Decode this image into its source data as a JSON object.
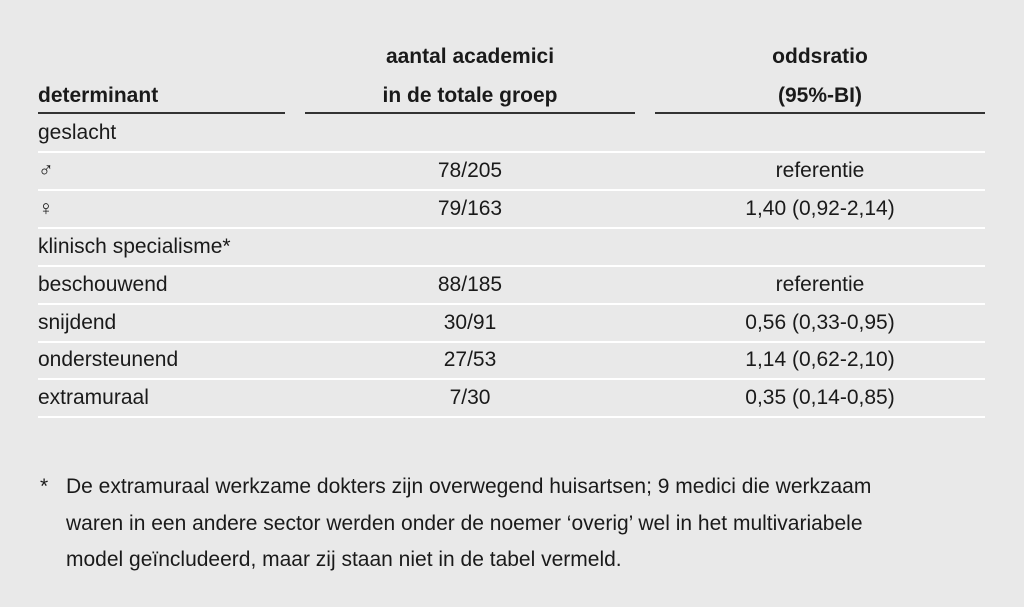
{
  "table": {
    "header": [
      [
        "determinant"
      ],
      [
        "aantal academici",
        "in de totale groep"
      ],
      [
        "oddsratio",
        "(95%-BI)"
      ]
    ],
    "rows": [
      {
        "label": "geslacht"
      },
      {
        "label": "♂",
        "count": "78/205",
        "oddsratio": "referentie"
      },
      {
        "label": "♀",
        "count": "79/163",
        "oddsratio": "1,40 (0,92-2,14)"
      },
      {
        "label": "klinisch specialisme*"
      },
      {
        "label": "beschouwend",
        "count": "88/185",
        "oddsratio": "referentie"
      },
      {
        "label": "snijdend",
        "count": "30/91",
        "oddsratio": "0,56 (0,33-0,95)"
      },
      {
        "label": "ondersteunend",
        "count": "27/53",
        "oddsratio": "1,14 (0,62-2,10)"
      },
      {
        "label": "extramuraal",
        "count": "7/30",
        "oddsratio": "0,35 (0,14-0,85)"
      }
    ]
  },
  "footnote": {
    "marker": "*",
    "lines": [
      "De extramuraal werkzame dokters zijn overwegend huisartsen; 9 medici die werkzaam",
      "waren in een andere sector werden onder de noemer ‘overig’ wel in het multivariabele",
      "model geïncludeerd, maar zij staan niet in de tabel vermeld."
    ]
  }
}
